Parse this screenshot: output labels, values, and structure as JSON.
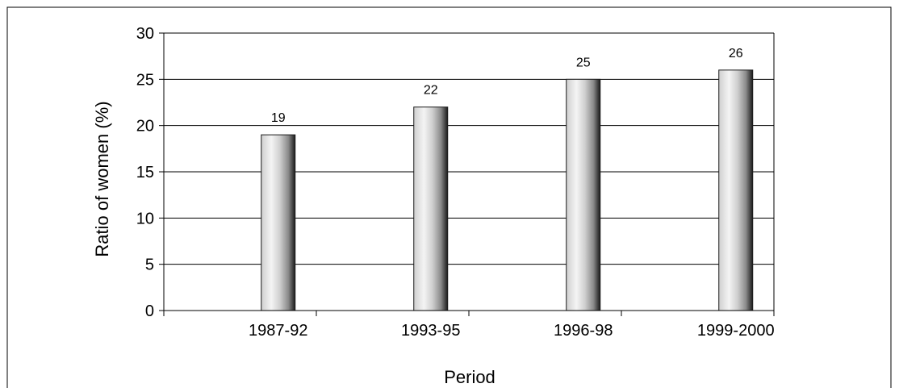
{
  "chart_data": {
    "type": "bar",
    "categories": [
      "1987-92",
      "1993-95",
      "1996-98",
      "1999-2000"
    ],
    "values": [
      19,
      22,
      25,
      26
    ],
    "title": "",
    "xlabel": "Period",
    "ylabel": "Ratio of women (%)",
    "ylim": [
      0,
      30
    ],
    "yticks": [
      0,
      5,
      10,
      15,
      20,
      25,
      30
    ],
    "grid": true,
    "legend": "none",
    "data_labels": true
  },
  "colors": {
    "bar_light": "#f4f4f4",
    "bar_mid": "#cfcfcf",
    "bar_dark": "#1a1a1a",
    "grid": "#000000",
    "frame": "#000000"
  }
}
